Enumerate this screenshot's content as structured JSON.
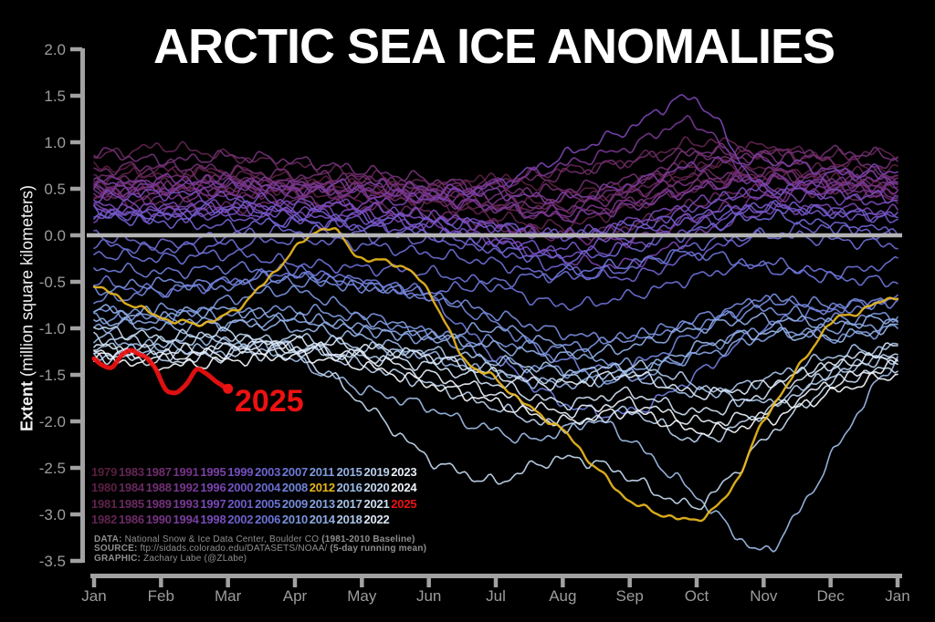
{
  "title": "ARCTIC SEA ICE ANOMALIES",
  "annotation": {
    "label": "2025",
    "color": "#ee1111"
  },
  "y_axis": {
    "label_bold": "Extent",
    "label_rest": " (million square kilometers)",
    "tick_labels": [
      "2.0",
      "1.5",
      "1.0",
      "0.5",
      "0.0",
      "-0.5",
      "-1.0",
      "-1.5",
      "-2.0",
      "-2.5",
      "-3.0",
      "-3.5"
    ],
    "tick_values": [
      2.0,
      1.5,
      1.0,
      0.5,
      0.0,
      -0.5,
      -1.0,
      -1.5,
      -2.0,
      -2.5,
      -3.0,
      -3.5
    ]
  },
  "x_axis": {
    "month_labels": [
      "Jan",
      "Feb",
      "Mar",
      "Apr",
      "May",
      "Jun",
      "Jul",
      "Aug",
      "Sep",
      "Oct",
      "Nov",
      "Dec",
      "Jan"
    ]
  },
  "colors": {
    "background": "#000000",
    "zero_line": "#b4b4b4",
    "axis": "#a2a2a2",
    "tick_text": "#9c9c9c",
    "credit_text": "#8f8f8f",
    "title_text": "#ffffff",
    "gold_2012": "#e8b71e",
    "red_2025": "#ee1111"
  },
  "credits": [
    [
      {
        "b": 1,
        "t": "DATA:"
      },
      {
        "b": 0,
        "t": " National Snow & Ice Data Center, Boulder CO "
      },
      {
        "b": 1,
        "t": "(1981-2010 Baseline)"
      }
    ],
    [
      {
        "b": 1,
        "t": "SOURCE:"
      },
      {
        "b": 0,
        "t": " ftp://sidads.colorado.edu/DATASETS/NOAA/ "
      },
      {
        "b": 1,
        "t": "(5-day running mean)"
      }
    ],
    [
      {
        "b": 1,
        "t": "GRAPHIC:"
      },
      {
        "b": 0,
        "t": " Zachary Labe (@ZLabe)"
      }
    ]
  ],
  "chart_data": {
    "type": "line",
    "title": "ARCTIC SEA ICE ANOMALIES",
    "ylabel": "Extent (million square kilometers)",
    "ylim": [
      -3.5,
      2.0
    ],
    "grid": false,
    "zero_line": 0.0,
    "x_months": [
      "Jan",
      "Feb",
      "Mar",
      "Apr",
      "May",
      "Jun",
      "Jul",
      "Aug",
      "Sep",
      "Oct",
      "Nov",
      "Dec",
      "Jan"
    ],
    "points_note": "values evenly spaced from Jan 1 to following Jan 1 over span_months (default 12)",
    "series": [
      {
        "year": "1979",
        "color": "#571e3e",
        "values": [
          0.75,
          0.65,
          0.7,
          0.6,
          0.55,
          0.5,
          0.6,
          0.5,
          0.45,
          0.7,
          0.9,
          0.8,
          0.7
        ]
      },
      {
        "year": "1980",
        "color": "#5b2044",
        "values": [
          0.45,
          0.5,
          0.45,
          0.5,
          0.4,
          0.45,
          0.3,
          0.4,
          0.55,
          0.75,
          0.7,
          0.6,
          0.5
        ]
      },
      {
        "year": "1981",
        "color": "#5e224a",
        "values": [
          0.6,
          0.7,
          0.65,
          0.55,
          0.5,
          0.35,
          0.2,
          0.1,
          0.3,
          0.5,
          0.65,
          0.7,
          0.6
        ]
      },
      {
        "year": "1982",
        "color": "#612450",
        "values": [
          0.85,
          0.95,
          0.85,
          0.75,
          0.65,
          0.55,
          0.6,
          0.7,
          0.8,
          1.0,
          0.95,
          0.85,
          0.9
        ]
      },
      {
        "year": "1983",
        "color": "#642656",
        "values": [
          0.5,
          0.55,
          0.5,
          0.45,
          0.5,
          0.4,
          0.35,
          0.3,
          0.5,
          0.65,
          0.6,
          0.55,
          0.5
        ]
      },
      {
        "year": "1984",
        "color": "#67285c",
        "values": [
          0.4,
          0.35,
          0.3,
          0.35,
          0.3,
          0.25,
          0.1,
          0.0,
          0.1,
          0.35,
          0.5,
          0.45,
          0.4
        ]
      },
      {
        "year": "1985",
        "color": "#6a2a62",
        "values": [
          0.55,
          0.5,
          0.6,
          0.5,
          0.4,
          0.35,
          0.3,
          0.2,
          0.35,
          0.55,
          0.65,
          0.6,
          0.55
        ]
      },
      {
        "year": "1986",
        "color": "#6d2c68",
        "values": [
          0.6,
          0.65,
          0.6,
          0.55,
          0.6,
          0.5,
          0.55,
          0.65,
          0.8,
          0.9,
          0.8,
          0.7,
          0.65
        ]
      },
      {
        "year": "1987",
        "color": "#6f2e6f",
        "values": [
          0.7,
          0.75,
          0.7,
          0.65,
          0.6,
          0.5,
          0.45,
          0.5,
          0.6,
          0.8,
          0.9,
          0.8,
          0.75
        ]
      },
      {
        "year": "1988",
        "color": "#713075",
        "values": [
          0.9,
          0.8,
          0.85,
          0.8,
          0.7,
          0.6,
          0.5,
          0.4,
          0.5,
          0.9,
          0.85,
          0.9,
          0.85
        ]
      },
      {
        "year": "1989",
        "color": "#74317c",
        "values": [
          0.5,
          0.45,
          0.5,
          0.55,
          0.5,
          0.45,
          0.4,
          0.3,
          0.45,
          0.6,
          0.7,
          0.6,
          0.55
        ]
      },
      {
        "year": "1990",
        "color": "#763282",
        "values": [
          0.45,
          0.5,
          0.45,
          0.4,
          0.3,
          0.2,
          0.1,
          0.0,
          -0.05,
          0.2,
          0.4,
          0.5,
          0.45
        ]
      },
      {
        "year": "1991",
        "color": "#773389",
        "values": [
          0.45,
          0.4,
          0.45,
          0.5,
          0.45,
          0.4,
          0.3,
          0.25,
          0.35,
          0.5,
          0.6,
          0.5,
          0.45
        ]
      },
      {
        "year": "1992",
        "color": "#783690",
        "values": [
          0.6,
          0.55,
          0.6,
          0.55,
          0.5,
          0.45,
          0.55,
          0.75,
          0.95,
          1.2,
          0.45,
          0.55,
          0.6
        ]
      },
      {
        "year": "1993",
        "color": "#793a98",
        "values": [
          0.5,
          0.6,
          0.55,
          0.5,
          0.45,
          0.4,
          0.3,
          0.2,
          0.3,
          0.5,
          0.6,
          0.55,
          0.5
        ]
      },
      {
        "year": "1994",
        "color": "#7a3ea0",
        "values": [
          0.55,
          0.5,
          0.55,
          0.5,
          0.55,
          0.5,
          0.45,
          0.4,
          0.55,
          0.75,
          0.8,
          0.7,
          0.6
        ]
      },
      {
        "year": "1995",
        "color": "#7a41a8",
        "values": [
          0.3,
          0.25,
          0.3,
          0.25,
          0.2,
          0.1,
          -0.05,
          -0.25,
          -0.3,
          0.0,
          0.25,
          0.3,
          0.25
        ]
      },
      {
        "year": "1996",
        "color": "#7a44b0",
        "values": [
          0.2,
          0.3,
          0.25,
          0.3,
          0.35,
          0.4,
          0.55,
          0.85,
          1.15,
          1.45,
          0.5,
          0.65,
          0.7
        ]
      },
      {
        "year": "1997",
        "color": "#7848b5",
        "values": [
          0.35,
          0.3,
          0.35,
          0.3,
          0.25,
          0.2,
          0.1,
          0.0,
          0.15,
          0.35,
          0.45,
          0.4,
          0.35
        ]
      },
      {
        "year": "1998",
        "color": "#764cba",
        "values": [
          0.4,
          0.45,
          0.4,
          0.35,
          0.3,
          0.2,
          0.1,
          0.0,
          0.1,
          0.3,
          0.5,
          0.45,
          0.4
        ]
      },
      {
        "year": "1999",
        "color": "#7450bf",
        "values": [
          0.3,
          0.2,
          0.25,
          0.2,
          0.15,
          0.1,
          -0.05,
          -0.2,
          -0.1,
          0.1,
          0.3,
          0.25,
          0.2
        ]
      },
      {
        "year": "2000",
        "color": "#7255c4",
        "values": [
          0.2,
          0.25,
          0.2,
          0.15,
          0.1,
          0.05,
          -0.05,
          -0.15,
          0.0,
          0.2,
          0.3,
          0.25,
          0.2
        ]
      },
      {
        "year": "2001",
        "color": "#6f5ac9",
        "values": [
          0.25,
          0.2,
          0.3,
          0.25,
          0.2,
          0.15,
          0.1,
          0.0,
          0.1,
          0.2,
          0.3,
          0.25,
          0.2
        ]
      },
      {
        "year": "2002",
        "color": "#6e60cc",
        "values": [
          0.2,
          0.15,
          0.1,
          0.15,
          0.1,
          0.0,
          -0.15,
          -0.35,
          -0.45,
          -0.2,
          0.0,
          0.1,
          0.05
        ]
      },
      {
        "year": "2003",
        "color": "#6c66cf",
        "values": [
          0.0,
          -0.1,
          0.0,
          0.05,
          0.0,
          -0.05,
          -0.15,
          -0.25,
          -0.15,
          0.05,
          0.2,
          0.1,
          0.0
        ]
      },
      {
        "year": "2004",
        "color": "#6b6cd2",
        "values": [
          -0.1,
          -0.15,
          -0.1,
          -0.05,
          -0.1,
          -0.2,
          -0.3,
          -0.45,
          -0.35,
          -0.1,
          0.0,
          -0.05,
          -0.1
        ]
      },
      {
        "year": "2005",
        "color": "#6a70d4",
        "values": [
          -0.2,
          -0.25,
          -0.2,
          -0.3,
          -0.35,
          -0.4,
          -0.55,
          -0.75,
          -0.65,
          -0.45,
          -0.3,
          -0.4,
          -0.3
        ]
      },
      {
        "year": "2006",
        "color": "#6a74d6",
        "values": [
          -0.5,
          -0.6,
          -0.5,
          -0.4,
          -0.5,
          -0.6,
          -0.5,
          -0.4,
          -0.3,
          -0.2,
          -0.35,
          -0.45,
          -0.5
        ]
      },
      {
        "year": "2007",
        "color": "#6e7cd8",
        "values": [
          -0.35,
          -0.4,
          -0.35,
          -0.4,
          -0.5,
          -0.7,
          -1.3,
          -1.8,
          -1.9,
          -1.5,
          -1.0,
          -0.8,
          -0.7
        ]
      },
      {
        "year": "2008",
        "color": "#7284da",
        "values": [
          -0.7,
          -0.6,
          -0.5,
          -0.45,
          -0.55,
          -0.65,
          -0.95,
          -1.35,
          -1.4,
          -1.05,
          -0.7,
          -0.8,
          -0.7
        ]
      },
      {
        "year": "2009",
        "color": "#768cdc",
        "values": [
          -0.6,
          -0.5,
          -0.55,
          -0.5,
          -0.55,
          -0.65,
          -0.85,
          -1.05,
          -1.1,
          -0.9,
          -0.7,
          -0.75,
          -0.7
        ]
      },
      {
        "year": "2010",
        "color": "#7a93dd",
        "values": [
          -0.8,
          -0.9,
          -0.7,
          -0.6,
          -0.85,
          -1.05,
          -1.15,
          -1.2,
          -1.1,
          -0.95,
          -0.8,
          -0.9,
          -0.85
        ]
      },
      {
        "year": "2011",
        "color": "#7e9ade",
        "values": [
          -0.9,
          -0.8,
          -0.85,
          -0.8,
          -0.9,
          -1.05,
          -1.35,
          -1.45,
          -1.55,
          -1.25,
          -1.0,
          -1.1,
          -1.0
        ]
      },
      {
        "year": "2012",
        "color": "#e8b71e",
        "highlight": "gold",
        "values": [
          -0.55,
          -0.72,
          -0.88,
          -0.95,
          -0.85,
          -0.55,
          -0.15,
          0.08,
          -0.25,
          -0.3,
          -0.6,
          -1.3,
          -1.55,
          -1.85,
          -2.1,
          -2.5,
          -2.85,
          -3.0,
          -3.05,
          -2.75,
          -2.0,
          -1.45,
          -0.95,
          -0.8,
          -0.65
        ]
      },
      {
        "year": "2013",
        "color": "#86a3e0",
        "values": [
          -1.0,
          -0.9,
          -0.95,
          -0.9,
          -1.0,
          -1.1,
          -1.0,
          -1.2,
          -1.4,
          -1.3,
          -1.1,
          -1.0,
          -0.95
        ]
      },
      {
        "year": "2014",
        "color": "#8dabe2",
        "values": [
          -0.8,
          -0.85,
          -0.8,
          -0.9,
          -1.0,
          -1.1,
          -1.2,
          -1.3,
          -1.2,
          -1.0,
          -0.9,
          -0.95,
          -0.9
        ]
      },
      {
        "year": "2015",
        "color": "#95b3e4",
        "values": [
          -0.9,
          -1.0,
          -0.95,
          -1.0,
          -1.1,
          -1.3,
          -1.5,
          -1.6,
          -1.5,
          -1.2,
          -1.05,
          -1.1,
          -1.0
        ]
      },
      {
        "year": "2016",
        "color": "#9dbbe6",
        "values": [
          -1.1,
          -1.15,
          -1.2,
          -1.1,
          -1.15,
          -1.2,
          -1.35,
          -1.5,
          -1.65,
          -1.75,
          -1.85,
          -2.0,
          -2.1,
          -2.2,
          -2.1,
          -2.0,
          -2.2,
          -2.5,
          -2.8,
          -3.15,
          -3.4,
          -3.0,
          -2.4,
          -1.8,
          -1.35
        ]
      },
      {
        "year": "2017",
        "color": "#a6c2e8",
        "values": [
          -1.3,
          -1.2,
          -1.25,
          -1.2,
          -1.3,
          -1.25,
          -1.35,
          -1.45,
          -1.5,
          -1.7,
          -1.55,
          -1.3,
          -1.2
        ]
      },
      {
        "year": "2018",
        "color": "#b0c9ea",
        "values": [
          -1.2,
          -1.3,
          -1.2,
          -1.1,
          -1.2,
          -1.3,
          -1.45,
          -1.55,
          -1.4,
          -1.6,
          -1.8,
          -1.5,
          -1.3
        ]
      },
      {
        "year": "2019",
        "color": "#bad0ec",
        "values": [
          -1.1,
          -1.15,
          -1.1,
          -1.2,
          -1.4,
          -1.6,
          -1.85,
          -2.05,
          -1.9,
          -2.2,
          -1.9,
          -1.5,
          -1.3
        ]
      },
      {
        "year": "2020",
        "color": "#c3d8ee",
        "values": [
          -1.0,
          -1.05,
          -1.1,
          -1.08,
          -1.05,
          -1.15,
          -1.3,
          -1.5,
          -1.8,
          -2.1,
          -2.4,
          -2.55,
          -2.65,
          -2.5,
          -2.4,
          -2.45,
          -2.6,
          -2.8,
          -2.9,
          -2.6,
          -2.2,
          -1.9,
          -1.6,
          -1.5,
          -1.4
        ]
      },
      {
        "year": "2021",
        "color": "#cfdff2",
        "values": [
          -1.3,
          -1.35,
          -1.3,
          -1.25,
          -1.3,
          -1.4,
          -1.6,
          -1.8,
          -1.7,
          -1.9,
          -1.7,
          -1.4,
          -1.2
        ]
      },
      {
        "year": "2022",
        "color": "#dbe7f5",
        "values": [
          -1.2,
          -1.25,
          -1.2,
          -1.15,
          -1.2,
          -1.3,
          -1.5,
          -1.6,
          -1.5,
          -1.7,
          -1.6,
          -1.4,
          -1.3
        ]
      },
      {
        "year": "2023",
        "color": "#e7eef8",
        "values": [
          -1.25,
          -1.3,
          -1.25,
          -1.2,
          -1.3,
          -1.5,
          -1.7,
          -1.9,
          -1.8,
          -2.0,
          -1.9,
          -1.6,
          -1.4
        ]
      },
      {
        "year": "2024",
        "color": "#f2f6fb",
        "values": [
          -1.3,
          -1.4,
          -1.35,
          -1.3,
          -1.4,
          -1.6,
          -1.8,
          -2.0,
          -1.9,
          -2.1,
          -2.0,
          -1.7,
          -1.5
        ]
      },
      {
        "year": "2025",
        "color": "#ee1111",
        "highlight": "red",
        "span_months": 2,
        "end_dot": true,
        "values": [
          -1.33,
          -1.42,
          -1.28,
          -1.26,
          -1.4,
          -1.7,
          -1.62,
          -1.45,
          -1.55,
          -1.63
        ]
      }
    ]
  }
}
